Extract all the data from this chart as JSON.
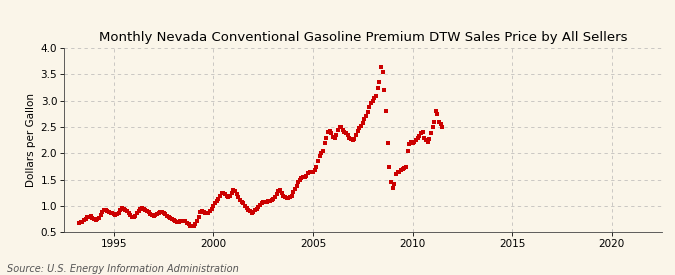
{
  "title": "Monthly Nevada Conventional Gasoline Premium DTW Sales Price by All Sellers",
  "ylabel": "Dollars per Gallon",
  "source_text": "Source: U.S. Energy Information Administration",
  "background_color": "#FAF5E9",
  "plot_bg_color": "#FAF5E9",
  "marker_color": "#CC0000",
  "marker": "s",
  "marker_size": 2.8,
  "xlim": [
    1992.5,
    2022.5
  ],
  "ylim": [
    0.5,
    4.0
  ],
  "yticks": [
    0.5,
    1.0,
    1.5,
    2.0,
    2.5,
    3.0,
    3.5,
    4.0
  ],
  "xticks": [
    1995,
    2000,
    2005,
    2010,
    2015,
    2020
  ],
  "grid_color": "#AAAAAA",
  "grid_style": "--",
  "title_fontsize": 9.5,
  "label_fontsize": 7.5,
  "tick_fontsize": 7.5,
  "source_fontsize": 7.0,
  "data": [
    [
      1993.25,
      0.67
    ],
    [
      1993.33,
      0.69
    ],
    [
      1993.42,
      0.7
    ],
    [
      1993.5,
      0.73
    ],
    [
      1993.58,
      0.76
    ],
    [
      1993.67,
      0.79
    ],
    [
      1993.75,
      0.8
    ],
    [
      1993.83,
      0.81
    ],
    [
      1993.92,
      0.78
    ],
    [
      1994.0,
      0.76
    ],
    [
      1994.08,
      0.74
    ],
    [
      1994.17,
      0.76
    ],
    [
      1994.25,
      0.78
    ],
    [
      1994.33,
      0.83
    ],
    [
      1994.42,
      0.88
    ],
    [
      1994.5,
      0.92
    ],
    [
      1994.58,
      0.92
    ],
    [
      1994.67,
      0.9
    ],
    [
      1994.75,
      0.88
    ],
    [
      1994.83,
      0.87
    ],
    [
      1994.92,
      0.86
    ],
    [
      1995.0,
      0.84
    ],
    [
      1995.08,
      0.83
    ],
    [
      1995.17,
      0.85
    ],
    [
      1995.25,
      0.87
    ],
    [
      1995.33,
      0.93
    ],
    [
      1995.42,
      0.96
    ],
    [
      1995.5,
      0.95
    ],
    [
      1995.58,
      0.93
    ],
    [
      1995.67,
      0.91
    ],
    [
      1995.75,
      0.87
    ],
    [
      1995.83,
      0.83
    ],
    [
      1995.92,
      0.8
    ],
    [
      1996.0,
      0.8
    ],
    [
      1996.08,
      0.82
    ],
    [
      1996.17,
      0.86
    ],
    [
      1996.25,
      0.9
    ],
    [
      1996.33,
      0.94
    ],
    [
      1996.42,
      0.96
    ],
    [
      1996.5,
      0.95
    ],
    [
      1996.58,
      0.93
    ],
    [
      1996.67,
      0.91
    ],
    [
      1996.75,
      0.88
    ],
    [
      1996.83,
      0.85
    ],
    [
      1996.92,
      0.83
    ],
    [
      1997.0,
      0.82
    ],
    [
      1997.08,
      0.83
    ],
    [
      1997.17,
      0.85
    ],
    [
      1997.25,
      0.86
    ],
    [
      1997.33,
      0.88
    ],
    [
      1997.42,
      0.88
    ],
    [
      1997.5,
      0.86
    ],
    [
      1997.58,
      0.84
    ],
    [
      1997.67,
      0.82
    ],
    [
      1997.75,
      0.8
    ],
    [
      1997.83,
      0.78
    ],
    [
      1997.92,
      0.75
    ],
    [
      1998.0,
      0.73
    ],
    [
      1998.08,
      0.71
    ],
    [
      1998.17,
      0.7
    ],
    [
      1998.25,
      0.7
    ],
    [
      1998.33,
      0.71
    ],
    [
      1998.42,
      0.72
    ],
    [
      1998.5,
      0.72
    ],
    [
      1998.58,
      0.71
    ],
    [
      1998.67,
      0.68
    ],
    [
      1998.75,
      0.65
    ],
    [
      1998.83,
      0.63
    ],
    [
      1998.92,
      0.62
    ],
    [
      1999.0,
      0.63
    ],
    [
      1999.08,
      0.66
    ],
    [
      1999.17,
      0.72
    ],
    [
      1999.25,
      0.8
    ],
    [
      1999.33,
      0.88
    ],
    [
      1999.42,
      0.9
    ],
    [
      1999.5,
      0.88
    ],
    [
      1999.58,
      0.87
    ],
    [
      1999.67,
      0.86
    ],
    [
      1999.75,
      0.87
    ],
    [
      1999.83,
      0.91
    ],
    [
      1999.92,
      0.95
    ],
    [
      2000.0,
      1.01
    ],
    [
      2000.08,
      1.06
    ],
    [
      2000.17,
      1.1
    ],
    [
      2000.25,
      1.14
    ],
    [
      2000.33,
      1.2
    ],
    [
      2000.42,
      1.24
    ],
    [
      2000.5,
      1.24
    ],
    [
      2000.58,
      1.22
    ],
    [
      2000.67,
      1.2
    ],
    [
      2000.75,
      1.18
    ],
    [
      2000.83,
      1.2
    ],
    [
      2000.92,
      1.25
    ],
    [
      2001.0,
      1.3
    ],
    [
      2001.08,
      1.28
    ],
    [
      2001.17,
      1.22
    ],
    [
      2001.25,
      1.18
    ],
    [
      2001.33,
      1.12
    ],
    [
      2001.42,
      1.08
    ],
    [
      2001.5,
      1.05
    ],
    [
      2001.58,
      1.0
    ],
    [
      2001.67,
      0.97
    ],
    [
      2001.75,
      0.93
    ],
    [
      2001.83,
      0.9
    ],
    [
      2001.92,
      0.87
    ],
    [
      2002.0,
      0.88
    ],
    [
      2002.08,
      0.92
    ],
    [
      2002.17,
      0.95
    ],
    [
      2002.25,
      0.98
    ],
    [
      2002.33,
      1.02
    ],
    [
      2002.42,
      1.05
    ],
    [
      2002.5,
      1.07
    ],
    [
      2002.58,
      1.08
    ],
    [
      2002.67,
      1.08
    ],
    [
      2002.75,
      1.09
    ],
    [
      2002.83,
      1.1
    ],
    [
      2002.92,
      1.12
    ],
    [
      2003.0,
      1.14
    ],
    [
      2003.08,
      1.18
    ],
    [
      2003.17,
      1.22
    ],
    [
      2003.25,
      1.28
    ],
    [
      2003.33,
      1.3
    ],
    [
      2003.42,
      1.25
    ],
    [
      2003.5,
      1.2
    ],
    [
      2003.58,
      1.18
    ],
    [
      2003.67,
      1.16
    ],
    [
      2003.75,
      1.15
    ],
    [
      2003.83,
      1.17
    ],
    [
      2003.92,
      1.2
    ],
    [
      2004.0,
      1.26
    ],
    [
      2004.08,
      1.32
    ],
    [
      2004.17,
      1.38
    ],
    [
      2004.25,
      1.45
    ],
    [
      2004.33,
      1.5
    ],
    [
      2004.42,
      1.53
    ],
    [
      2004.5,
      1.55
    ],
    [
      2004.58,
      1.55
    ],
    [
      2004.67,
      1.58
    ],
    [
      2004.75,
      1.62
    ],
    [
      2004.83,
      1.65
    ],
    [
      2004.92,
      1.65
    ],
    [
      2005.0,
      1.65
    ],
    [
      2005.08,
      1.68
    ],
    [
      2005.17,
      1.75
    ],
    [
      2005.25,
      1.85
    ],
    [
      2005.33,
      1.95
    ],
    [
      2005.42,
      2.0
    ],
    [
      2005.5,
      2.05
    ],
    [
      2005.58,
      2.2
    ],
    [
      2005.67,
      2.3
    ],
    [
      2005.75,
      2.4
    ],
    [
      2005.83,
      2.42
    ],
    [
      2005.92,
      2.38
    ],
    [
      2006.0,
      2.32
    ],
    [
      2006.08,
      2.3
    ],
    [
      2006.17,
      2.35
    ],
    [
      2006.25,
      2.45
    ],
    [
      2006.33,
      2.5
    ],
    [
      2006.42,
      2.5
    ],
    [
      2006.5,
      2.45
    ],
    [
      2006.58,
      2.4
    ],
    [
      2006.67,
      2.38
    ],
    [
      2006.75,
      2.35
    ],
    [
      2006.83,
      2.3
    ],
    [
      2006.92,
      2.28
    ],
    [
      2007.0,
      2.25
    ],
    [
      2007.08,
      2.28
    ],
    [
      2007.17,
      2.35
    ],
    [
      2007.25,
      2.42
    ],
    [
      2007.33,
      2.48
    ],
    [
      2007.42,
      2.52
    ],
    [
      2007.5,
      2.58
    ],
    [
      2007.58,
      2.65
    ],
    [
      2007.67,
      2.72
    ],
    [
      2007.75,
      2.78
    ],
    [
      2007.83,
      2.88
    ],
    [
      2007.92,
      2.95
    ],
    [
      2008.0,
      3.0
    ],
    [
      2008.08,
      3.05
    ],
    [
      2008.17,
      3.1
    ],
    [
      2008.25,
      3.25
    ],
    [
      2008.33,
      3.35
    ],
    [
      2008.42,
      3.65
    ],
    [
      2008.5,
      3.55
    ],
    [
      2008.58,
      3.2
    ],
    [
      2008.67,
      2.8
    ],
    [
      2008.75,
      2.2
    ],
    [
      2008.83,
      1.75
    ],
    [
      2008.92,
      1.45
    ],
    [
      2009.0,
      1.35
    ],
    [
      2009.08,
      1.42
    ],
    [
      2009.17,
      1.6
    ],
    [
      2009.25,
      1.65
    ],
    [
      2009.33,
      1.65
    ],
    [
      2009.42,
      1.68
    ],
    [
      2009.5,
      1.7
    ],
    [
      2009.58,
      1.72
    ],
    [
      2009.67,
      1.75
    ],
    [
      2009.75,
      2.05
    ],
    [
      2009.83,
      2.18
    ],
    [
      2009.92,
      2.22
    ],
    [
      2010.0,
      2.2
    ],
    [
      2010.08,
      2.22
    ],
    [
      2010.17,
      2.26
    ],
    [
      2010.25,
      2.3
    ],
    [
      2010.33,
      2.34
    ],
    [
      2010.42,
      2.38
    ],
    [
      2010.5,
      2.4
    ],
    [
      2010.58,
      2.3
    ],
    [
      2010.67,
      2.25
    ],
    [
      2010.75,
      2.22
    ],
    [
      2010.83,
      2.28
    ],
    [
      2010.92,
      2.38
    ],
    [
      2011.0,
      2.5
    ],
    [
      2011.08,
      2.6
    ],
    [
      2011.17,
      2.8
    ],
    [
      2011.25,
      2.75
    ],
    [
      2011.33,
      2.6
    ],
    [
      2011.42,
      2.55
    ],
    [
      2011.5,
      2.5
    ]
  ]
}
